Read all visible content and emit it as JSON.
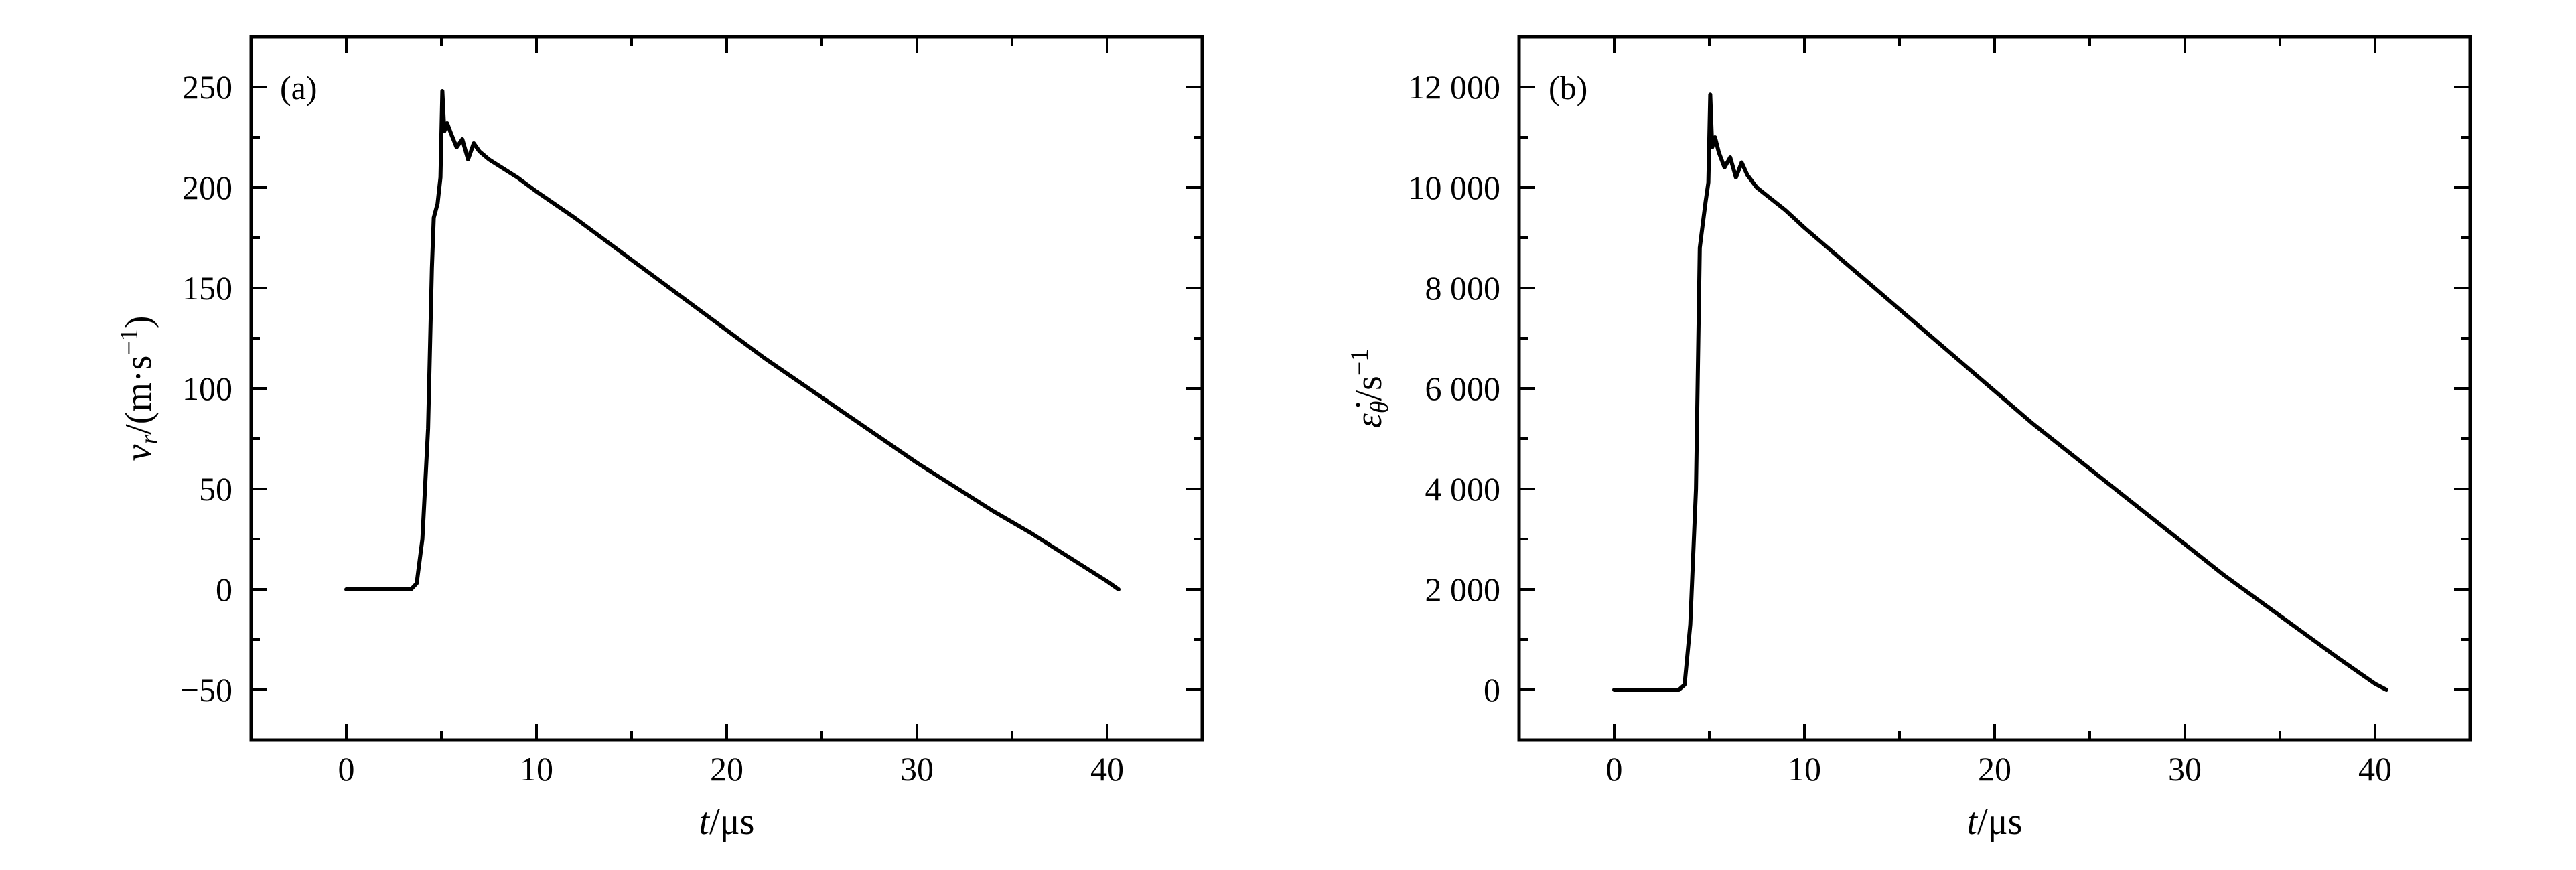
{
  "chart_data": [
    {
      "type": "line",
      "panel_label": "(a)",
      "xlabel": "t/μs",
      "ylabel": "v_r/(m·s^-1)",
      "xlim": [
        -5,
        45
      ],
      "ylim": [
        -75,
        275
      ],
      "x_ticks": [
        0,
        10,
        20,
        30,
        40
      ],
      "y_ticks": [
        -50,
        0,
        50,
        100,
        150,
        200,
        250
      ],
      "x_tick_labels": [
        "0",
        "10",
        "20",
        "30",
        "40"
      ],
      "y_tick_labels": [
        "−50",
        "0",
        "50",
        "100",
        "150",
        "200",
        "250"
      ],
      "series": [
        {
          "x": [
            0,
            3.4,
            3.7,
            4.0,
            4.3,
            4.5,
            4.6,
            4.8,
            4.95,
            5.05,
            5.15,
            5.3,
            5.5,
            5.8,
            6.1,
            6.4,
            6.7,
            7.0,
            7.5,
            8.0,
            9.0,
            10,
            12,
            14,
            16,
            18,
            20,
            22,
            24,
            26,
            28,
            30,
            32,
            34,
            36,
            38,
            40,
            40.6
          ],
          "y": [
            0,
            0,
            3,
            25,
            80,
            160,
            185,
            192,
            205,
            248,
            228,
            232,
            227,
            220,
            224,
            214,
            222,
            218,
            214,
            211,
            205,
            198,
            185,
            171,
            157,
            143,
            129,
            115,
            102,
            89,
            76,
            63,
            51,
            39,
            28,
            16,
            4,
            0
          ]
        }
      ]
    },
    {
      "type": "line",
      "panel_label": "(b)",
      "xlabel": "t/μs",
      "ylabel": "ε̇_θ/s^-1",
      "xlim": [
        -5,
        45
      ],
      "ylim": [
        -1000,
        13000
      ],
      "x_ticks": [
        0,
        10,
        20,
        30,
        40
      ],
      "y_ticks": [
        0,
        2000,
        4000,
        6000,
        8000,
        10000,
        12000
      ],
      "x_tick_labels": [
        "0",
        "10",
        "20",
        "30",
        "40"
      ],
      "y_tick_labels": [
        "0",
        "2 000",
        "4 000",
        "6 000",
        "8 000",
        "10 000",
        "12 000"
      ],
      "series": [
        {
          "x": [
            0,
            3.4,
            3.7,
            4.0,
            4.3,
            4.5,
            4.6,
            4.8,
            4.95,
            5.05,
            5.15,
            5.3,
            5.5,
            5.8,
            6.1,
            6.4,
            6.7,
            7.0,
            7.5,
            8.0,
            9.0,
            10,
            12,
            14,
            16,
            18,
            20,
            22,
            24,
            26,
            28,
            30,
            32,
            34,
            36,
            38,
            40,
            40.6
          ],
          "y": [
            0,
            0,
            100,
            1300,
            4000,
            8800,
            9100,
            9700,
            10100,
            11850,
            10800,
            11000,
            10700,
            10400,
            10600,
            10200,
            10500,
            10250,
            10000,
            9850,
            9550,
            9200,
            8550,
            7900,
            7250,
            6600,
            5950,
            5300,
            4700,
            4100,
            3500,
            2900,
            2300,
            1750,
            1200,
            650,
            120,
            0
          ]
        }
      ]
    }
  ]
}
